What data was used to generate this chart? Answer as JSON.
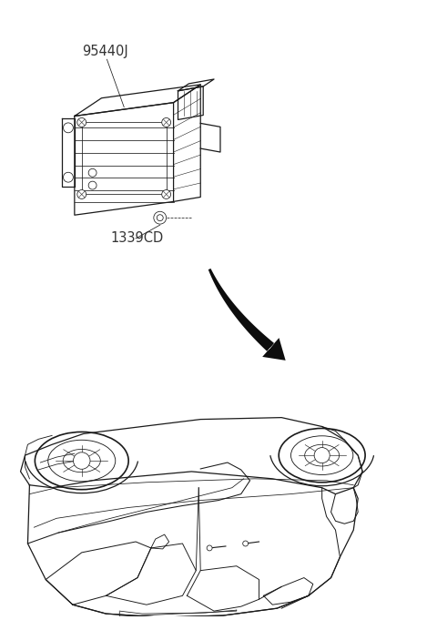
{
  "bg_color": "#ffffff",
  "line_color": "#1a1a1a",
  "label_color": "#333333",
  "arrow_color": "#0d0d0d",
  "part_label_1": "95440J",
  "part_label_2": "1339CD",
  "fig_width": 4.8,
  "fig_height": 6.81,
  "dpi": 100
}
